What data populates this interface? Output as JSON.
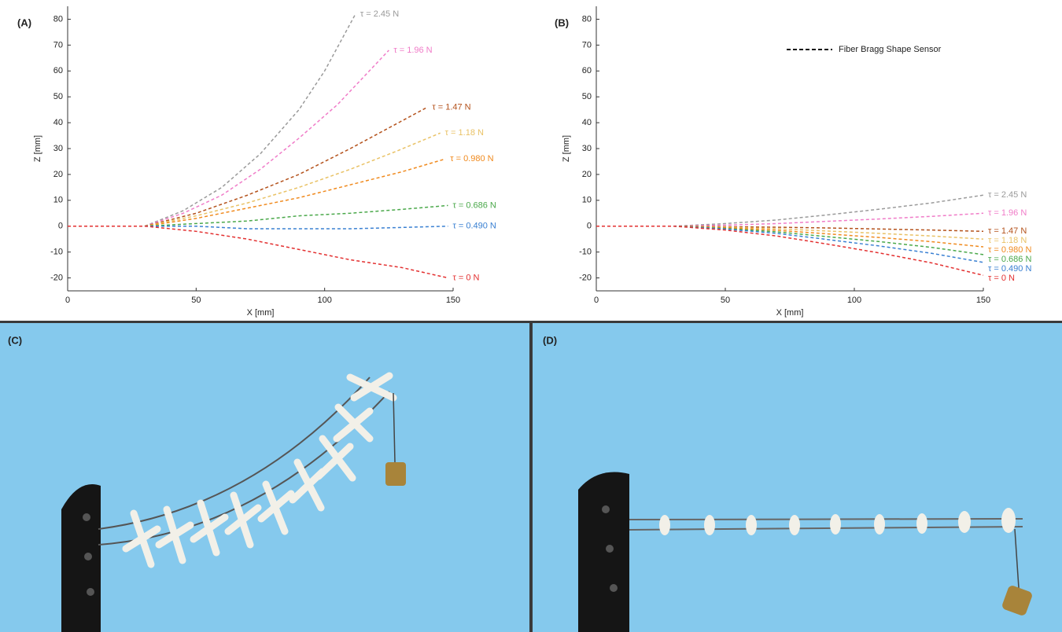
{
  "chart_data": [
    {
      "type": "line",
      "panel": "(A)",
      "xlabel": "X [mm]",
      "ylabel": "Z [mm]",
      "xlim": [
        0,
        150
      ],
      "ylim": [
        -25,
        85
      ],
      "xticks": [
        0,
        50,
        100,
        150
      ],
      "yticks": [
        -20,
        -10,
        0,
        10,
        20,
        30,
        40,
        50,
        60,
        70,
        80
      ],
      "series": [
        {
          "name": "τ = 2.45 N",
          "color": "#9a9a9a",
          "x": [
            0,
            30,
            45,
            60,
            75,
            90,
            100,
            112
          ],
          "values": [
            0,
            0,
            6,
            15,
            28,
            45,
            60,
            82
          ]
        },
        {
          "name": "τ = 1.96 N",
          "color": "#f07cc8",
          "x": [
            0,
            30,
            45,
            60,
            75,
            90,
            105,
            125
          ],
          "values": [
            0,
            0,
            5,
            12,
            22,
            34,
            47,
            68
          ]
        },
        {
          "name": "τ = 1.47 N",
          "color": "#b4521c",
          "x": [
            0,
            30,
            50,
            70,
            90,
            110,
            125,
            140
          ],
          "values": [
            0,
            0,
            5,
            12,
            20,
            30,
            38,
            46
          ]
        },
        {
          "name": "τ = 1.18 N",
          "color": "#e9c266",
          "x": [
            0,
            30,
            50,
            70,
            90,
            110,
            128,
            145
          ],
          "values": [
            0,
            0,
            4,
            9,
            15,
            22,
            29,
            36
          ]
        },
        {
          "name": "τ = 0.980 N",
          "color": "#f08a1e",
          "x": [
            0,
            30,
            50,
            70,
            90,
            110,
            130,
            147
          ],
          "values": [
            0,
            0,
            3,
            7,
            11,
            16,
            21,
            26
          ]
        },
        {
          "name": "τ = 0.686 N",
          "color": "#4aa84a",
          "x": [
            0,
            30,
            50,
            70,
            90,
            110,
            130,
            148
          ],
          "values": [
            0,
            0,
            1,
            2,
            4,
            5,
            6.5,
            8
          ]
        },
        {
          "name": "τ = 0.490 N",
          "color": "#3a80d2",
          "x": [
            0,
            30,
            50,
            70,
            90,
            110,
            130,
            148
          ],
          "values": [
            0,
            0,
            0,
            -1,
            -1,
            -1,
            -0.5,
            0
          ]
        },
        {
          "name": "τ = 0 N",
          "color": "#e33030",
          "x": [
            0,
            30,
            50,
            70,
            90,
            110,
            130,
            148
          ],
          "values": [
            0,
            0,
            -2,
            -5,
            -9,
            -13,
            -16,
            -20
          ]
        }
      ]
    },
    {
      "type": "line",
      "panel": "(B)",
      "xlabel": "X [mm]",
      "ylabel": "Z [mm]",
      "legend_label": "Fiber Bragg Shape Sensor",
      "xlim": [
        0,
        150
      ],
      "ylim": [
        -25,
        85
      ],
      "xticks": [
        0,
        50,
        100,
        150
      ],
      "yticks": [
        -20,
        -10,
        0,
        10,
        20,
        30,
        40,
        50,
        60,
        70,
        80
      ],
      "series": [
        {
          "name": "τ = 2.45 N",
          "color": "#9a9a9a",
          "x": [
            0,
            30,
            50,
            70,
            90,
            110,
            130,
            150
          ],
          "values": [
            0,
            0,
            1,
            2.4,
            4.4,
            6.6,
            9,
            12
          ]
        },
        {
          "name": "τ = 1.96 N",
          "color": "#f07cc8",
          "x": [
            0,
            30,
            50,
            70,
            90,
            110,
            130,
            150
          ],
          "values": [
            0,
            0,
            0.4,
            1,
            1.9,
            2.8,
            3.8,
            5
          ]
        },
        {
          "name": "τ = 1.47 N",
          "color": "#b4521c",
          "x": [
            0,
            30,
            50,
            70,
            90,
            110,
            130,
            150
          ],
          "values": [
            0,
            0,
            -0.2,
            -0.4,
            -0.7,
            -1.1,
            -1.5,
            -2
          ]
        },
        {
          "name": "τ = 1.18 N",
          "color": "#e9c266",
          "x": [
            0,
            30,
            50,
            70,
            90,
            110,
            130,
            150
          ],
          "values": [
            0,
            0,
            -0.4,
            -1,
            -1.9,
            -2.8,
            -3.8,
            -5
          ]
        },
        {
          "name": "τ = 0.980 N",
          "color": "#f08a1e",
          "x": [
            0,
            30,
            50,
            70,
            90,
            110,
            130,
            150
          ],
          "values": [
            0,
            0,
            -0.6,
            -1.6,
            -3,
            -4.4,
            -6,
            -8
          ]
        },
        {
          "name": "τ = 0.686 N",
          "color": "#4aa84a",
          "x": [
            0,
            30,
            50,
            70,
            90,
            110,
            130,
            150
          ],
          "values": [
            0,
            0,
            -0.9,
            -2.2,
            -4.1,
            -6,
            -8.2,
            -11
          ]
        },
        {
          "name": "τ = 0.490 N",
          "color": "#3a80d2",
          "x": [
            0,
            30,
            50,
            70,
            90,
            110,
            130,
            150
          ],
          "values": [
            0,
            0,
            -1.1,
            -2.8,
            -5.2,
            -7.7,
            -10.5,
            -14
          ]
        },
        {
          "name": "τ = 0 N",
          "color": "#e33030",
          "x": [
            0,
            30,
            50,
            70,
            90,
            110,
            130,
            150
          ],
          "values": [
            0,
            0,
            -1.5,
            -3.8,
            -7,
            -10.4,
            -14.2,
            -19
          ]
        }
      ]
    }
  ],
  "photos": [
    {
      "label": "(C)"
    },
    {
      "label": "(D)"
    }
  ]
}
